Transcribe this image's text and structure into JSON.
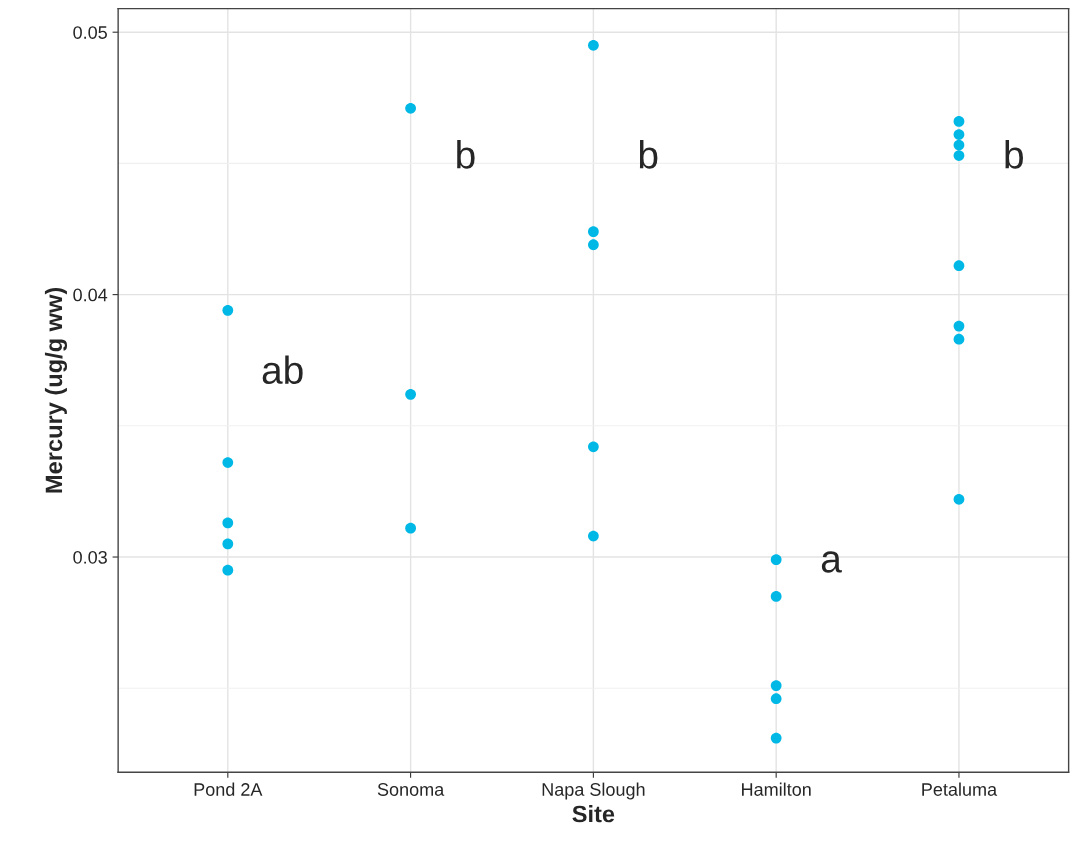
{
  "chart_data": {
    "type": "scatter",
    "xlabel": "Site",
    "ylabel": "Mercury (ug/g ww)",
    "categories": [
      "Pond 2A",
      "Sonoma",
      "Napa Slough",
      "Hamilton",
      "Petaluma"
    ],
    "series": [
      {
        "color": "#00b8e6",
        "x": [
          "Pond 2A",
          "Pond 2A",
          "Pond 2A",
          "Pond 2A",
          "Pond 2A",
          "Sonoma",
          "Sonoma",
          "Sonoma",
          "Napa Slough",
          "Napa Slough",
          "Napa Slough",
          "Napa Slough",
          "Napa Slough",
          "Hamilton",
          "Hamilton",
          "Hamilton",
          "Hamilton",
          "Hamilton",
          "Petaluma",
          "Petaluma",
          "Petaluma",
          "Petaluma",
          "Petaluma",
          "Petaluma",
          "Petaluma",
          "Petaluma"
        ],
        "values": [
          0.0394,
          0.0336,
          0.0313,
          0.0305,
          0.0295,
          0.0471,
          0.0362,
          0.0311,
          0.0495,
          0.0424,
          0.0419,
          0.0342,
          0.0308,
          0.0299,
          0.0285,
          0.0251,
          0.0246,
          0.0231,
          0.0466,
          0.0461,
          0.0457,
          0.0453,
          0.0411,
          0.0388,
          0.0383,
          0.0322
        ]
      }
    ],
    "ylim": [
      0.0218,
      0.0509
    ],
    "yticks": [
      {
        "value": 0.025,
        "label": null
      },
      0.03,
      {
        "value": 0.035,
        "label": null
      },
      0.04,
      {
        "value": 0.045,
        "label": null
      },
      0.05
    ],
    "grid": true,
    "marker": "circle",
    "annotations": [
      "ab",
      "b",
      "b",
      "a",
      "b"
    ]
  }
}
